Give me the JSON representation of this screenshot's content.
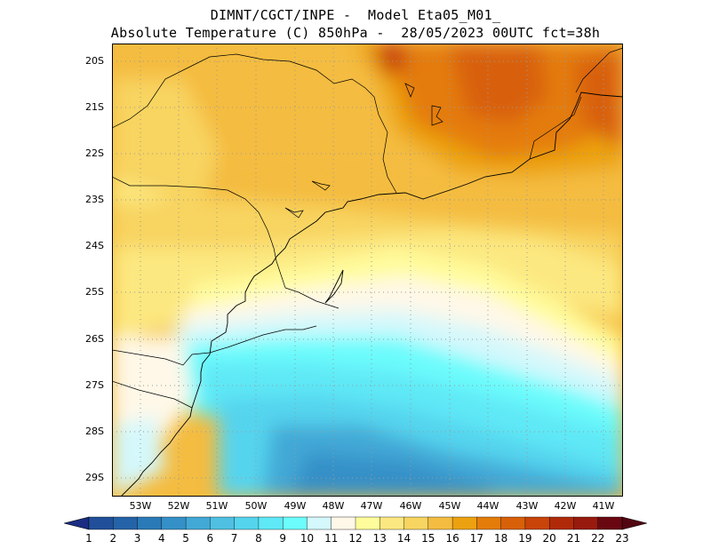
{
  "title_line1": "DIMNT/CGCT/INPE -  Model Eta05_M01_",
  "title_line2": "Absolute Temperature (C) 850hPa -  28/05/2023 00UTC fct=38h",
  "map": {
    "lat_labels": [
      "20S",
      "21S",
      "22S",
      "23S",
      "24S",
      "25S",
      "26S",
      "27S",
      "28S",
      "29S"
    ],
    "lon_labels": [
      "53W",
      "52W",
      "51W",
      "50W",
      "49W",
      "48W",
      "47W",
      "46W",
      "45W",
      "44W",
      "43W",
      "42W",
      "41W"
    ],
    "lat_range": [
      -29.4,
      -19.8
    ],
    "lon_range": [
      -53.7,
      -40.7
    ],
    "grid": "dotted"
  },
  "colorbar": {
    "labels": [
      "1",
      "2",
      "3",
      "4",
      "5",
      "6",
      "7",
      "8",
      "9",
      "10",
      "11",
      "12",
      "13",
      "14",
      "15",
      "16",
      "17",
      "18",
      "19",
      "20",
      "21",
      "22",
      "23"
    ],
    "colors": [
      "#1e3c8c",
      "#214f9a",
      "#2563a8",
      "#2a7ab8",
      "#3590c8",
      "#42a8d6",
      "#4fc0e2",
      "#55d4ee",
      "#5fe8f6",
      "#6cfcfc",
      "#d4f8fc",
      "#fff8e8",
      "#fffc9c",
      "#fce880",
      "#f8d460",
      "#f4bc40",
      "#eca210",
      "#e47c0a",
      "#d86008",
      "#c84408",
      "#b02a0a",
      "#981a0e",
      "#6a0812"
    ],
    "under_color": "#1a2d82",
    "over_color": "#520612"
  }
}
